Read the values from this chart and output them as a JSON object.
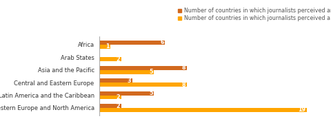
{
  "categories": [
    "Western Europe and North America",
    "Latin America and the Caribbean",
    "Central and Eastern Europe",
    "Asia and the Pacific",
    "Arab States",
    "Africa"
  ],
  "increase": [
    2,
    5,
    3,
    8,
    0,
    6
  ],
  "decrease": [
    19,
    2,
    8,
    5,
    2,
    1
  ],
  "color_increase": "#D2691E",
  "color_decrease": "#FFA500",
  "legend_increase": "Number of countries in which journalists perceived an INCREASE in the credibility of journalism",
  "legend_decrease": "Number of countries in which journalists perceived a DECREASE in the credibility of journalism",
  "xlim": [
    0,
    21
  ],
  "bar_height": 0.32,
  "tick_fontsize": 6.0,
  "legend_fontsize": 5.8,
  "value_fontsize": 5.8
}
